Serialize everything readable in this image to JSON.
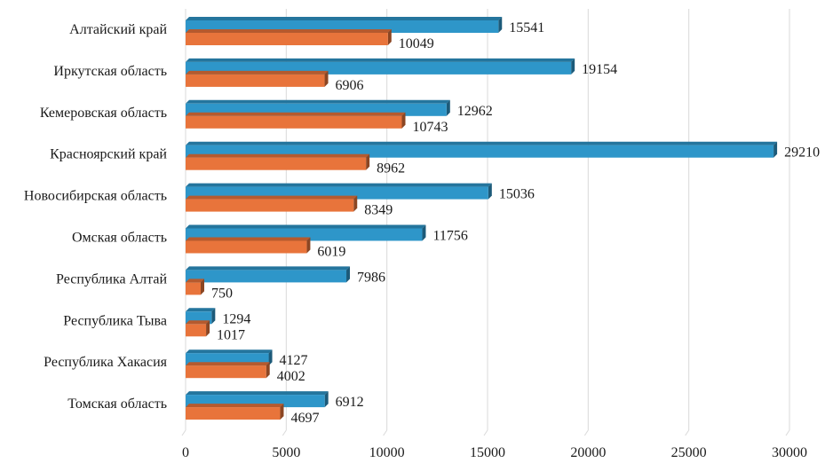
{
  "chart_data": {
    "type": "bar",
    "orientation": "horizontal",
    "title": "",
    "xlabel": "",
    "ylabel": "",
    "xlim": [
      0,
      30000
    ],
    "x_ticks": [
      0,
      5000,
      10000,
      15000,
      20000,
      25000,
      30000
    ],
    "x_tick_labels": [
      "0",
      "5000",
      "10000",
      "15000",
      "20000",
      "25000",
      "30000"
    ],
    "grid": true,
    "legend": "none",
    "categories": [
      "Алтайский край",
      "Иркутская область",
      "Кемеровская область",
      "Красноярский край",
      "Новосибирская область",
      "Омская область",
      "Республика Алтай",
      "Республика Тыва",
      "Республика Хакасия",
      "Томская область"
    ],
    "series": [
      {
        "name": "series-1",
        "color": "#2E96C9",
        "values": [
          15541,
          19154,
          12962,
          29210,
          15036,
          11756,
          7986,
          1294,
          4127,
          6912
        ]
      },
      {
        "name": "series-2",
        "color": "#E8743B",
        "values": [
          10049,
          6906,
          10743,
          8962,
          8349,
          6019,
          750,
          1017,
          4002,
          4697
        ]
      }
    ]
  }
}
